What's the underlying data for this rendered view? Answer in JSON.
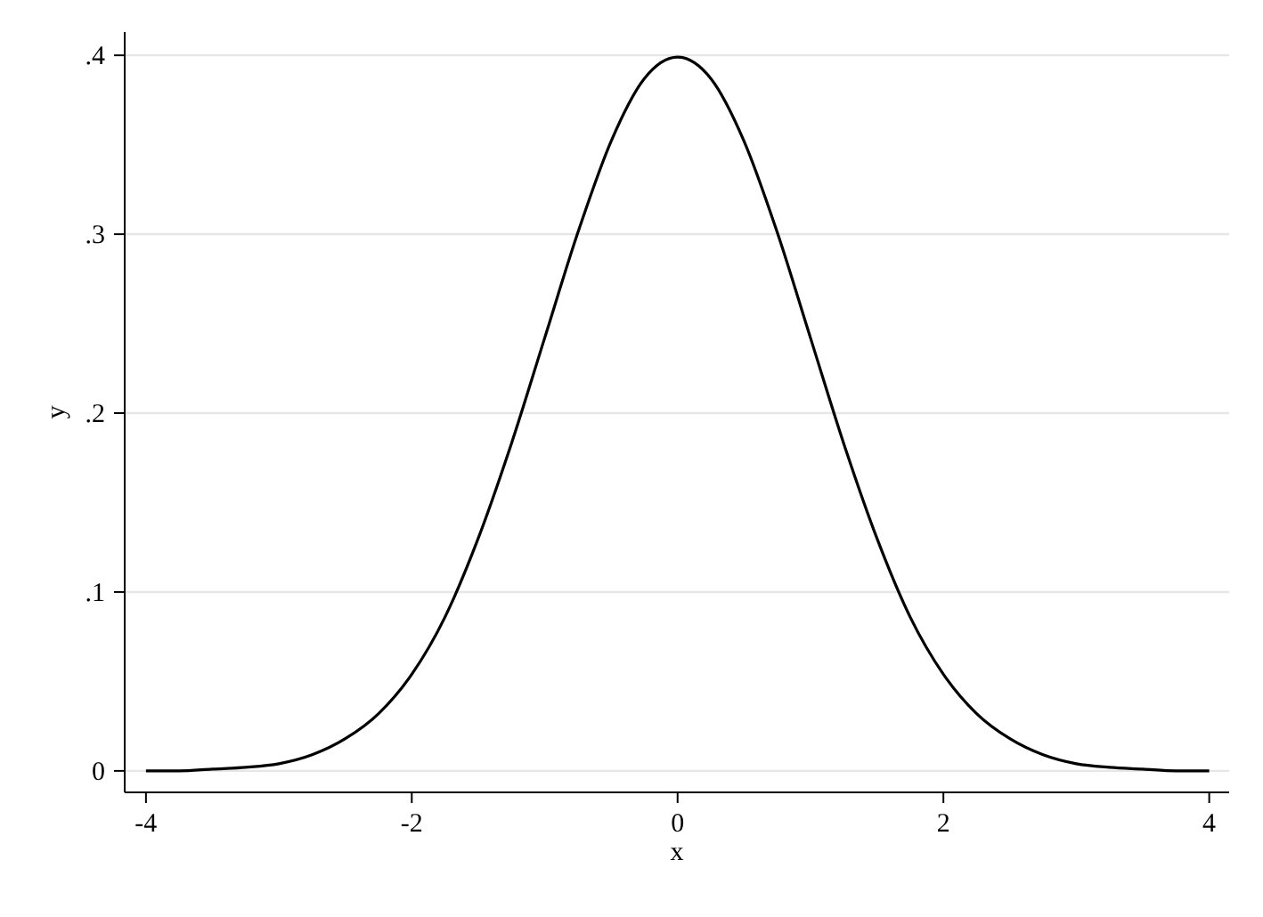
{
  "chart_data": {
    "type": "line",
    "xlabel": "x",
    "ylabel": "y",
    "x": [
      -4,
      -3.75,
      -3.5,
      -3.25,
      -3,
      -2.75,
      -2.5,
      -2.25,
      -2,
      -1.75,
      -1.5,
      -1.25,
      -1,
      -0.75,
      -0.5,
      -0.25,
      0,
      0.25,
      0.5,
      0.75,
      1,
      1.25,
      1.5,
      1.75,
      2,
      2.25,
      2.5,
      2.75,
      3,
      3.25,
      3.5,
      3.75,
      4
    ],
    "series": [
      {
        "color": "#000000",
        "values": [
          0.0,
          0.0,
          0.001,
          0.002,
          0.004,
          0.009,
          0.018,
          0.032,
          0.054,
          0.086,
          0.13,
          0.183,
          0.242,
          0.301,
          0.352,
          0.387,
          0.399,
          0.387,
          0.352,
          0.301,
          0.242,
          0.183,
          0.13,
          0.086,
          0.054,
          0.032,
          0.018,
          0.009,
          0.004,
          0.002,
          0.001,
          0.0,
          0.0
        ]
      }
    ],
    "xlim": [
      -4.16,
      4.15
    ],
    "ylim": [
      -0.012,
      0.413
    ],
    "xticks": [
      -4,
      -2,
      0,
      2,
      4
    ],
    "yticks": [
      0,
      {
        "value": 0.1,
        "label": ".1"
      },
      {
        "value": 0.2,
        "label": ".2"
      },
      {
        "value": 0.3,
        "label": ".3"
      },
      {
        "value": 0.4,
        "label": ".4"
      }
    ],
    "grid": "y",
    "marker": "none",
    "line_style": "solid"
  }
}
